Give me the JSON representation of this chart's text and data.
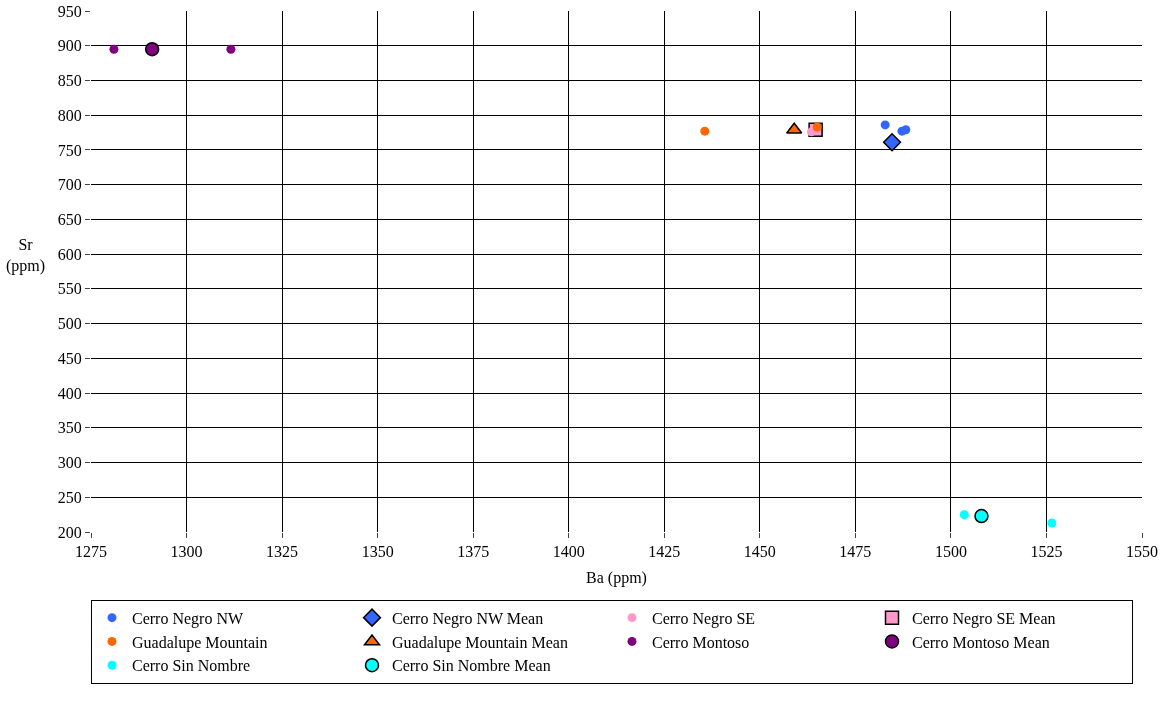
{
  "chart_data": {
    "type": "scatter",
    "xlabel": "Ba (ppm)",
    "ylabel": "Sr\n(ppm)",
    "xlim": [
      1275,
      1550
    ],
    "xticks": [
      1275,
      1300,
      1325,
      1350,
      1375,
      1400,
      1425,
      1450,
      1475,
      1500,
      1525,
      1550
    ],
    "ylim": [
      200,
      950
    ],
    "yticks": [
      200,
      250,
      300,
      350,
      400,
      450,
      500,
      550,
      600,
      650,
      700,
      750,
      800,
      850,
      900,
      950
    ],
    "grid": true,
    "legend": "bottom",
    "series": [
      {
        "name": "Cerro Negro NW",
        "color": "#3366ff",
        "marker": "circle",
        "x": [
          1482.8,
          1487.2,
          1488.2
        ],
        "values": [
          786,
          777,
          779
        ]
      },
      {
        "name": "Cerro Negro NW Mean",
        "color": "#3366ff",
        "marker": "diamond",
        "x": [
          1484.6
        ],
        "values": [
          761
        ]
      },
      {
        "name": "Cerro Negro SE",
        "color": "#ff99cc",
        "marker": "circle",
        "x": [
          1463.5
        ],
        "values": [
          776
        ]
      },
      {
        "name": "Cerro Negro SE Mean",
        "color": "#ff99cc",
        "marker": "square",
        "x": [
          1464.6
        ],
        "values": [
          779
        ]
      },
      {
        "name": "Guadalupe Mountain",
        "color": "#ff6600",
        "marker": "circle",
        "x": [
          1435.6,
          1465
        ],
        "values": [
          777,
          783
        ]
      },
      {
        "name": "Guadalupe Mountain Mean",
        "color": "#ff6600",
        "marker": "triangle",
        "x": [
          1459
        ],
        "values": [
          779
        ]
      },
      {
        "name": "Cerro Montoso",
        "color": "#800080",
        "marker": "circle",
        "x": [
          1281,
          1311.6
        ],
        "values": [
          895,
          895
        ]
      },
      {
        "name": "Cerro Montoso Mean",
        "color": "#800080",
        "marker": "circle",
        "x": [
          1291
        ],
        "values": [
          895
        ]
      },
      {
        "name": "Cerro Sin Nombre",
        "color": "#00ffff",
        "marker": "circle",
        "x": [
          1503.5,
          1526.4
        ],
        "values": [
          225,
          213
        ]
      },
      {
        "name": "Cerro Sin Nombre Mean",
        "color": "#00ffff",
        "marker": "circle",
        "x": [
          1508
        ],
        "values": [
          223
        ]
      }
    ]
  }
}
